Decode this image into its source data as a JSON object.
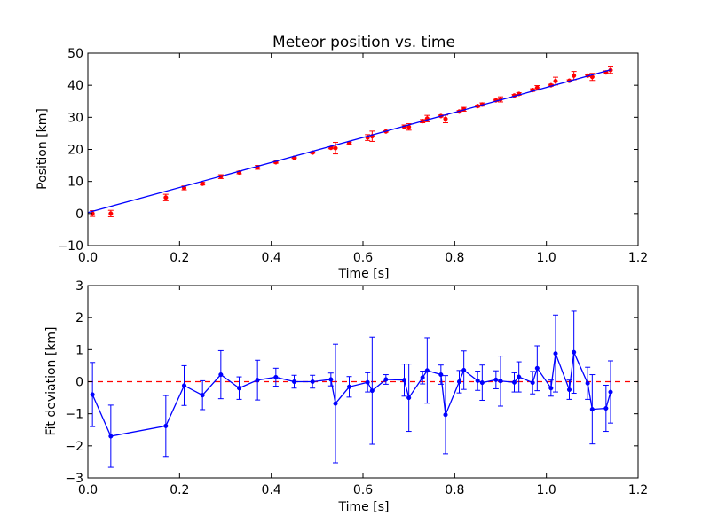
{
  "colors": {
    "background": "#ffffff",
    "series_blue": "#0000ff",
    "points_red": "#ff0000",
    "zero_line": "#ff0000"
  },
  "chart_data": [
    {
      "type": "scatter",
      "title": "Meteor position vs. time",
      "xlabel": "Time [s]",
      "ylabel": "Position [km]",
      "xlim": [
        0.0,
        1.2
      ],
      "ylim": [
        -10,
        50
      ],
      "xticks": [
        "0.0",
        "0.2",
        "0.4",
        "0.6",
        "0.8",
        "1.0",
        "1.2"
      ],
      "yticks": [
        "−10",
        "0",
        "10",
        "20",
        "30",
        "40",
        "50"
      ],
      "grid": false,
      "series": [
        {
          "kind": "points_with_errorbars",
          "color": "#ff0000",
          "x": [
            0.01,
            0.05,
            0.17,
            0.21,
            0.25,
            0.29,
            0.33,
            0.37,
            0.41,
            0.45,
            0.49,
            0.53,
            0.54,
            0.57,
            0.61,
            0.62,
            0.65,
            0.69,
            0.7,
            0.73,
            0.74,
            0.77,
            0.78,
            0.81,
            0.82,
            0.85,
            0.86,
            0.89,
            0.9,
            0.93,
            0.94,
            0.97,
            0.98,
            1.01,
            1.02,
            1.05,
            1.06,
            1.09,
            1.1,
            1.13,
            1.14
          ],
          "y": [
            0.0,
            0.0,
            5.0,
            8.0,
            9.3,
            11.5,
            12.8,
            14.4,
            16.0,
            17.4,
            19.0,
            20.5,
            20.4,
            22.0,
            23.7,
            24.1,
            25.6,
            27.0,
            27.0,
            28.8,
            29.6,
            30.4,
            29.5,
            31.8,
            32.5,
            33.5,
            34.0,
            35.3,
            35.6,
            36.8,
            37.3,
            38.5,
            39.2,
            40.0,
            41.3,
            41.4,
            43.0,
            43.0,
            42.6,
            44.0,
            44.7
          ],
          "yerr": [
            0.9,
            1.0,
            1.0,
            0.6,
            0.4,
            0.6,
            0.4,
            0.6,
            0.3,
            0.2,
            0.2,
            0.3,
            1.8,
            0.3,
            0.9,
            1.6,
            0.2,
            0.6,
            1.0,
            0.5,
            1.0,
            0.3,
            1.2,
            0.3,
            0.6,
            0.3,
            0.5,
            0.3,
            0.8,
            0.3,
            0.4,
            0.4,
            0.7,
            0.3,
            1.2,
            0.3,
            1.3,
            0.3,
            1.1,
            0.5,
            1.0
          ]
        },
        {
          "kind": "fit_line",
          "color": "#0000ff",
          "x": [
            0.0,
            1.14
          ],
          "y": [
            0.3,
            44.8
          ]
        }
      ]
    },
    {
      "type": "line",
      "title": "",
      "xlabel": "Time [s]",
      "ylabel": "Fit deviation [km]",
      "xlim": [
        0.0,
        1.2
      ],
      "ylim": [
        -3,
        3
      ],
      "xticks": [
        "0.0",
        "0.2",
        "0.4",
        "0.6",
        "0.8",
        "1.0",
        "1.2"
      ],
      "yticks": [
        "−3",
        "−2",
        "−1",
        "0",
        "1",
        "2",
        "3"
      ],
      "grid": false,
      "zero_line": {
        "y": 0,
        "color": "#ff0000",
        "style": "dashed"
      },
      "series": [
        {
          "kind": "line_with_errorbars",
          "color": "#0000ff",
          "x": [
            0.01,
            0.05,
            0.17,
            0.21,
            0.25,
            0.29,
            0.33,
            0.37,
            0.41,
            0.45,
            0.49,
            0.53,
            0.54,
            0.57,
            0.61,
            0.62,
            0.65,
            0.69,
            0.7,
            0.73,
            0.74,
            0.77,
            0.78,
            0.81,
            0.82,
            0.85,
            0.86,
            0.89,
            0.9,
            0.93,
            0.94,
            0.97,
            0.98,
            1.01,
            1.02,
            1.05,
            1.06,
            1.09,
            1.1,
            1.13,
            1.14
          ],
          "y": [
            -0.4,
            -1.7,
            -1.38,
            -0.12,
            -0.42,
            0.22,
            -0.2,
            0.05,
            0.14,
            0.0,
            0.0,
            0.07,
            -0.68,
            -0.16,
            -0.02,
            -0.28,
            0.07,
            0.05,
            -0.5,
            0.13,
            0.35,
            0.22,
            -1.03,
            0.0,
            0.36,
            0.03,
            -0.03,
            0.06,
            0.02,
            -0.02,
            0.15,
            -0.03,
            0.42,
            -0.2,
            0.88,
            -0.25,
            0.92,
            -0.05,
            -0.86,
            -0.83,
            -0.32
          ],
          "yerr": [
            1.0,
            0.97,
            0.95,
            0.62,
            0.45,
            0.75,
            0.35,
            0.62,
            0.28,
            0.2,
            0.2,
            0.2,
            1.85,
            0.32,
            0.3,
            1.67,
            0.15,
            0.5,
            1.05,
            0.2,
            1.02,
            0.3,
            1.22,
            0.35,
            0.6,
            0.3,
            0.55,
            0.28,
            0.78,
            0.3,
            0.47,
            0.35,
            0.7,
            0.25,
            1.2,
            0.3,
            1.28,
            0.5,
            1.08,
            0.72,
            0.97
          ]
        }
      ]
    }
  ]
}
